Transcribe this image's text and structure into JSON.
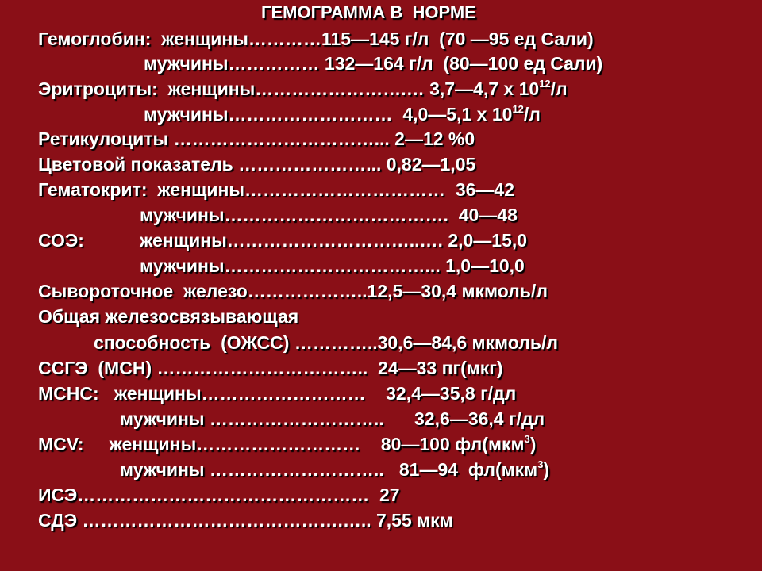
{
  "title": "ГЕМОГРАММА В  НОРМЕ",
  "lines": {
    "hb_w": "Гемоглобин:  женщины…………115—145 г/л  (70 —95 ед Сали)",
    "hb_m": "мужчины…………… 132—164 г/л  (80—100 ед Сали)",
    "rbc_w_pre": "Эритроциты:  женщины…………………….… 3,7—4,7 х 10",
    "rbc_w_exp": "12",
    "rbc_w_post": "/л",
    "rbc_m_pre": "мужчины………………………  4,0—5,1 х 10",
    "rbc_m_exp": "12",
    "rbc_m_post": "/л",
    "retic": "Ретикулоциты ……………………………... 2—12 %0",
    "ci": "Цветовой показатель …………………... 0,82—1,05",
    "hct_w": "Гематокрит:  женщины……………………………  36—42",
    "hct_m": "мужчины……………………………….  40—48",
    "esr_label": "СОЭ:",
    "esr_w": "женщины…………………………..…. 2,0—15,0",
    "esr_m": "мужчины……………………………... 1,0—10,0",
    "fe": "Сывороточное  железо………………..12,5—30,4 мкмоль/л",
    "tibc_1": "Общая железосвязывающая",
    "tibc_2": "способность  (ОЖСС) …………..30,6—84,6 мкмоль/л",
    "mch": "ССГЭ  (МСН) ……………………………..  24—33 пг(мкг)",
    "mchc_w": "МСНС:   женщины………………………    32,4—35,8 г/дл",
    "mchc_m": "мужчины ………………………..      32,6—36,4 г/дл",
    "mcv_w_pre": "MCV:     женщины………………………    80—100 фл(мкм",
    "mcv_w_exp": "3",
    "mcv_w_post": ")",
    "mcv_m_pre": "мужчины ………………………..   81—94  фл(мкм",
    "mcv_m_exp": "3",
    "mcv_m_post": ")",
    "ise": "ИСЭ…………………………………………  27",
    "sde": "СДЭ …………………………………….….. 7,55 мкм"
  },
  "colors": {
    "background": "#8a0f17",
    "text": "#ffffff",
    "shadow": "#000000"
  }
}
